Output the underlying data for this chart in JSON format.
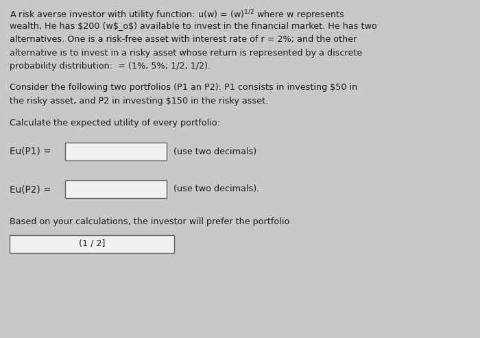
{
  "bg_color": "#c8c8c8",
  "card_color": "#e2e2e2",
  "box_color": "#f0f0f0",
  "text_color": "#1a1a1a",
  "font_size_main": 9.2,
  "font_size_label": 9.8,
  "p1_lines": [
    "A risk averse investor with utility function: u(w) = (w)$^{1/2}$ where w represents",
    "wealth, He has $200 (w$_o$) available to invest in the financial market. He has two",
    "alternatives. One is a risk-free asset with interest rate of r = 2%; and the other",
    "alternative is to invest in a risky asset whose return is represented by a discrete",
    "probability distribution:  = (1%, 5%; 1/2, 1/2)."
  ],
  "p2_lines": [
    "Consider the following two portfolios (P1 an P2): P1 consists in investing $50 in",
    "the risky asset, and P2 in investing $150 in the risky asset."
  ],
  "p3": "Calculate the expected utility of every portfolio:",
  "eu_p1_label": "Eu(P1) =",
  "eu_p1_hint": "(use two decimals)",
  "eu_p2_label": "Eu(P2) =",
  "eu_p2_hint": "(use two decimals).",
  "conclusion": "Based on your calculations, the investor will prefer the portfolio",
  "answer_box_text": "(1 / 2]"
}
